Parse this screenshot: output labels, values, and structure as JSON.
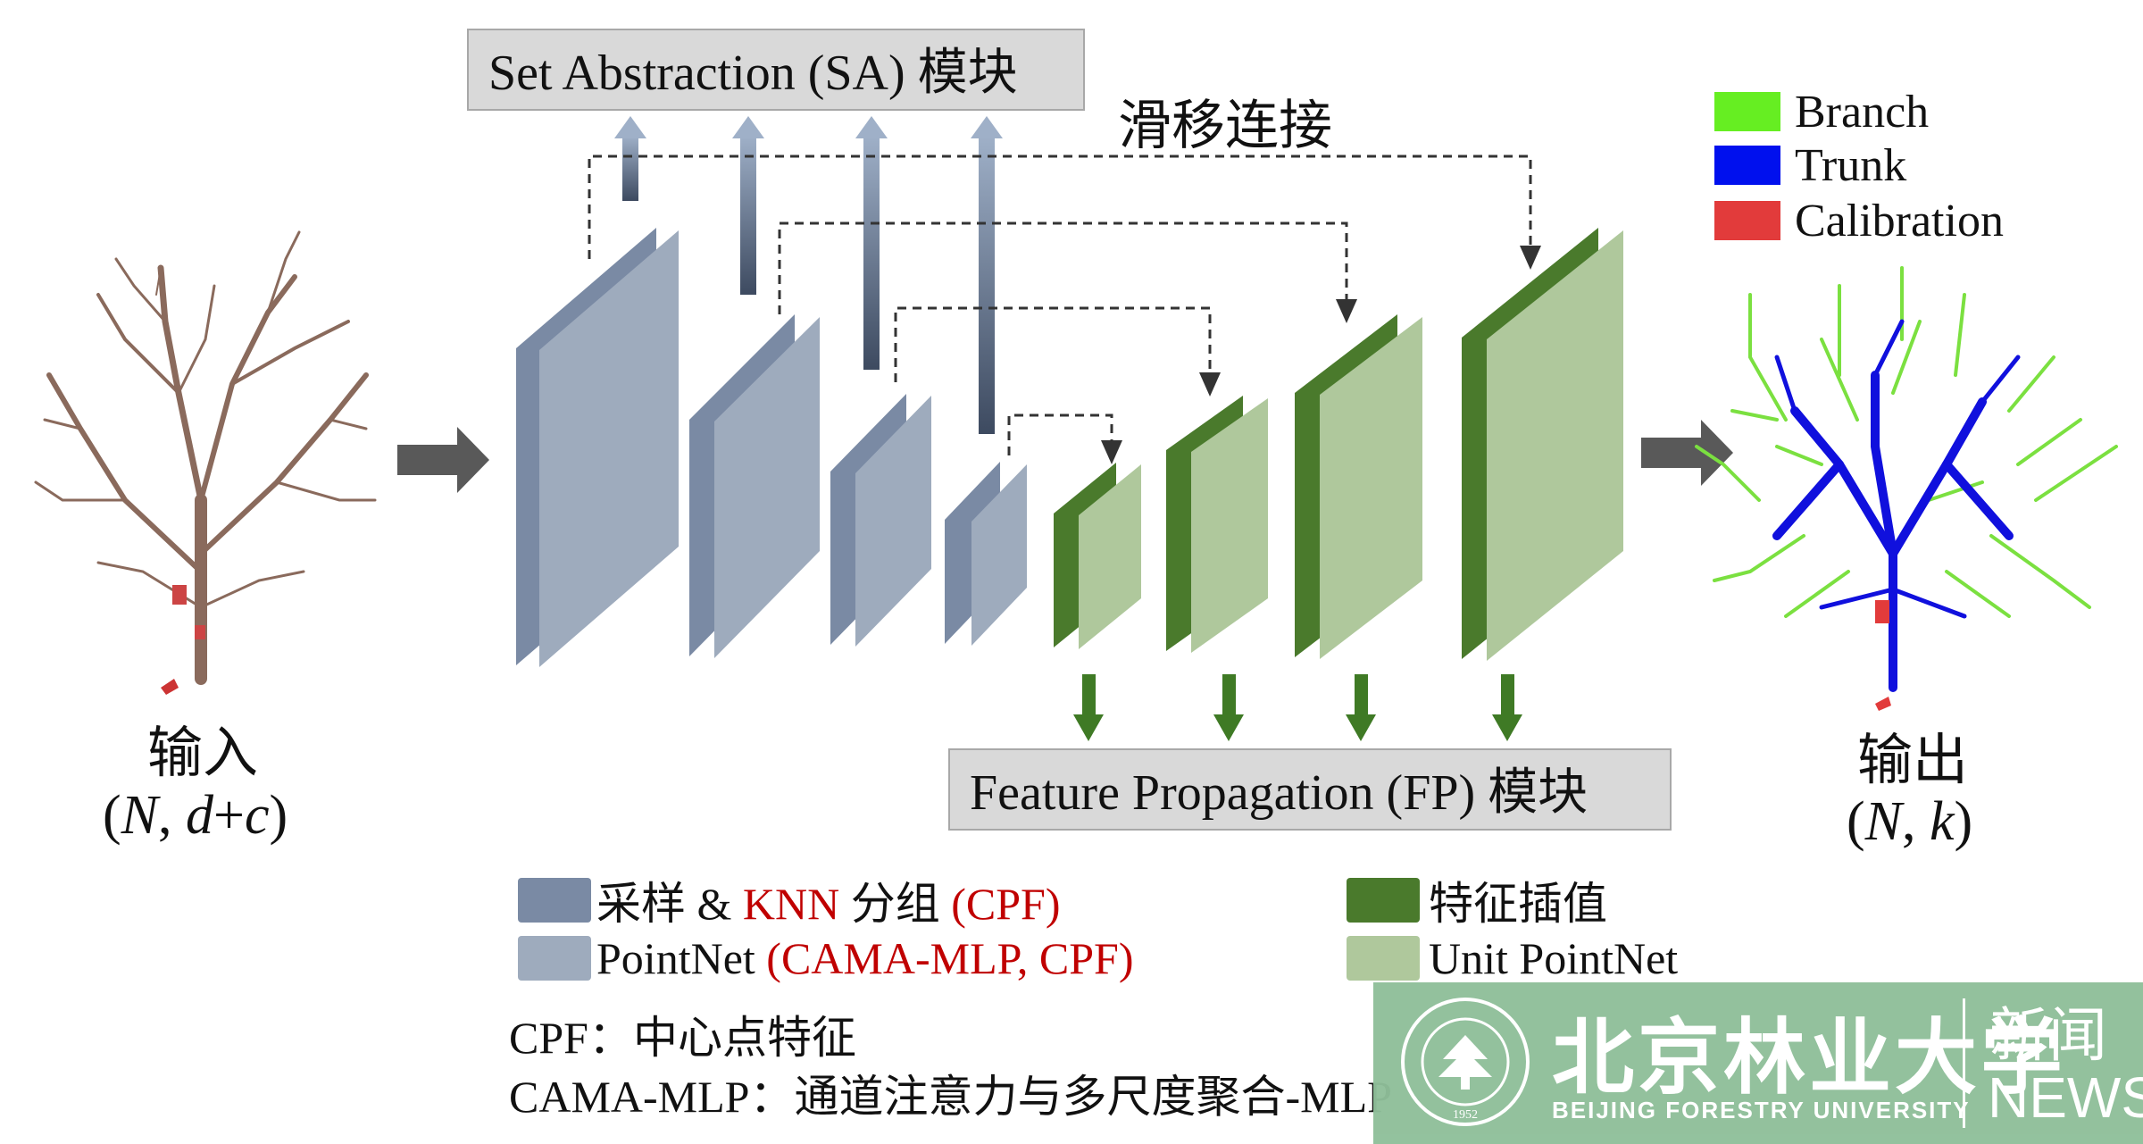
{
  "sa_module_title": "Set Abstraction (SA) 模块",
  "fp_module_title": "Feature Propagation (FP) 模块",
  "skip_label": "滑移连接",
  "input": {
    "label": "输入",
    "shape_pre": "(",
    "shape_N": "N",
    "shape_comma": ", ",
    "shape_d": "d",
    "shape_plus": "+",
    "shape_c": "c",
    "shape_post": ")"
  },
  "output": {
    "label": "输出",
    "shape_pre": "(",
    "shape_N": "N",
    "shape_comma": ", ",
    "shape_k": "k",
    "shape_post": ")"
  },
  "class_legend": [
    {
      "label": "Branch",
      "color": "#66ee22"
    },
    {
      "label": "Trunk",
      "color": "#0010ee"
    },
    {
      "label": "Calibration",
      "color": "#e23b3b"
    }
  ],
  "legend": {
    "sampling_prefix": "采样 & ",
    "sampling_knn": "KNN",
    "sampling_group": " 分组 ",
    "sampling_cpf": "(CPF)",
    "pointnet_prefix": "PointNet ",
    "pointnet_suffix": "(CAMA-MLP, CPF)",
    "interp": "特征插值",
    "unit_pointnet": "Unit PointNet",
    "sampling_color": "#7a8aa4",
    "pointnet_color": "#9eabbd",
    "interp_color": "#4a7a2c",
    "unit_color": "#afc89c"
  },
  "notes": {
    "cpf": "CPF：中心点特征",
    "cama": "CAMA-MLP：通道注意力与多尺度聚合-MLP"
  },
  "watermark": {
    "university_cn": "北京林业大学",
    "university_en": "BEIJING FORESTRY UNIVERSITY",
    "seal_year": "1952",
    "news_cn": "新闻",
    "news_en": "NEWS",
    "bg_color": "#8fbf9a"
  }
}
